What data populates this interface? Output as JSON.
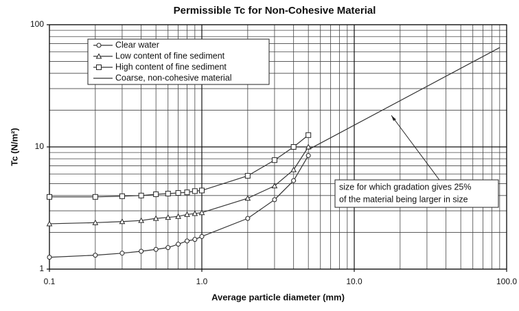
{
  "chart_data": {
    "type": "line",
    "title": "Permissible Tc for Non-Cohesive Material",
    "xlabel": "Average particle diameter (mm)",
    "ylabel": "Tc (N/m²)",
    "xscale": "log",
    "yscale": "log",
    "grid": true,
    "legend": "upper left",
    "xlim": [
      0.1,
      100
    ],
    "ylim": [
      1,
      100
    ],
    "xticks": [
      0.1,
      {
        "value": 1,
        "label": "1.0"
      },
      {
        "value": 10,
        "label": "10.0"
      },
      {
        "value": 100,
        "label": "100.0"
      }
    ],
    "yticks": [
      1,
      10,
      100
    ],
    "xminorticks": [
      0.2,
      0.3,
      0.4,
      0.5,
      0.6,
      0.7,
      0.8,
      0.9,
      2,
      3,
      4,
      5,
      6,
      7,
      8,
      9,
      20,
      30,
      40,
      50,
      60,
      70,
      80,
      90
    ],
    "yminorticks": [
      2,
      3,
      4,
      5,
      6,
      7,
      8,
      9,
      20,
      30,
      40,
      50,
      60,
      70,
      80,
      90
    ],
    "series": [
      {
        "name": "Clear water",
        "marker": "circle",
        "color": "#333333",
        "x": [
          0.1,
          0.2,
          0.3,
          0.4,
          0.5,
          0.6,
          0.7,
          0.8,
          0.9,
          1,
          2,
          3,
          4,
          5
        ],
        "values": [
          1.25,
          1.3,
          1.35,
          1.4,
          1.45,
          1.5,
          1.6,
          1.7,
          1.75,
          1.85,
          2.6,
          3.7,
          5.3,
          8.5
        ]
      },
      {
        "name": "Low content of fine sediment",
        "marker": "triangle",
        "color": "#333333",
        "x": [
          0.1,
          0.2,
          0.3,
          0.4,
          0.5,
          0.6,
          0.7,
          0.8,
          0.9,
          1,
          2,
          3,
          4,
          5
        ],
        "values": [
          2.35,
          2.4,
          2.45,
          2.5,
          2.6,
          2.65,
          2.7,
          2.8,
          2.85,
          2.9,
          3.8,
          4.8,
          6.5,
          10
        ]
      },
      {
        "name": "High content of fine sediment",
        "marker": "square",
        "color": "#333333",
        "x": [
          0.1,
          0.2,
          0.3,
          0.4,
          0.5,
          0.6,
          0.7,
          0.8,
          0.9,
          1,
          2,
          3,
          4,
          5
        ],
        "values": [
          3.9,
          3.9,
          3.95,
          4.0,
          4.1,
          4.15,
          4.2,
          4.25,
          4.35,
          4.4,
          5.8,
          7.8,
          10,
          12.5
        ]
      },
      {
        "name": "Coarse, non-cohesive material",
        "marker": "none",
        "color": "#333333",
        "x": [
          5,
          90
        ],
        "values": [
          9.5,
          65
        ]
      }
    ],
    "annotation": [
      "size for which gradation gives 25%",
      "of the material being larger in size"
    ]
  }
}
